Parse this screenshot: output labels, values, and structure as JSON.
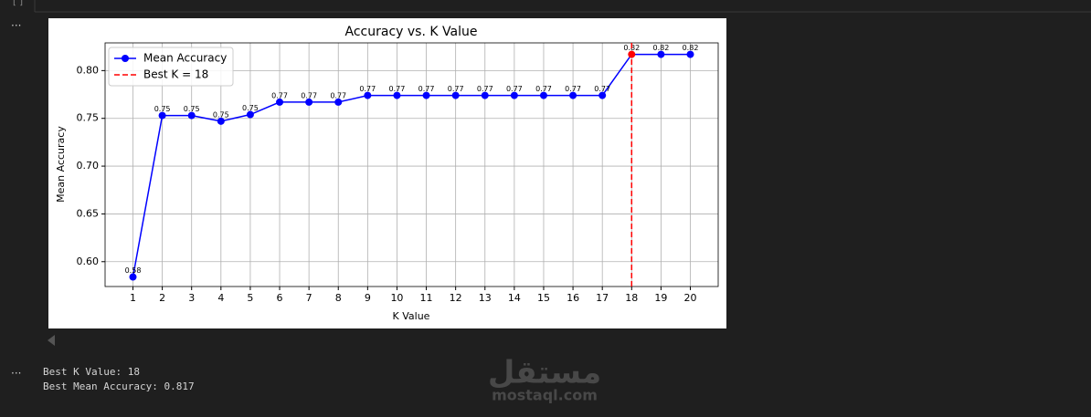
{
  "cell_prompt": "[ ]",
  "output_marker": "...",
  "chart_data": {
    "type": "line",
    "title": "Accuracy vs. K Value",
    "x_label": "K Value",
    "y_label": "Mean Accuracy",
    "x": [
      1,
      2,
      3,
      4,
      5,
      6,
      7,
      8,
      9,
      10,
      11,
      12,
      13,
      14,
      15,
      16,
      17,
      18,
      19,
      20
    ],
    "series": [
      {
        "name": "Mean Accuracy",
        "color": "#0000ff",
        "values": [
          0.584,
          0.753,
          0.753,
          0.747,
          0.754,
          0.767,
          0.767,
          0.767,
          0.774,
          0.774,
          0.774,
          0.774,
          0.774,
          0.774,
          0.774,
          0.774,
          0.774,
          0.817,
          0.817,
          0.817
        ],
        "value_labels": [
          "0.58",
          "0.75",
          "0.75",
          "0.75",
          "0.75",
          "0.77",
          "0.77",
          "0.77",
          "0.77",
          "0.77",
          "0.77",
          "0.77",
          "0.77",
          "0.77",
          "0.77",
          "0.77",
          "0.77",
          "0.82",
          "0.82",
          "0.82"
        ]
      }
    ],
    "vline": {
      "x": 18,
      "label": "Best K = 18",
      "color": "#ff0000"
    },
    "xlim": [
      0.05,
      20.95
    ],
    "xticks": [
      1,
      2,
      3,
      4,
      5,
      6,
      7,
      8,
      9,
      10,
      11,
      12,
      13,
      14,
      15,
      16,
      17,
      18,
      19,
      20
    ],
    "ylim": [
      0.574,
      0.829
    ],
    "yticks": [
      {
        "value": 0.6,
        "label": "0.60"
      },
      0.65,
      {
        "value": 0.7,
        "label": "0.70"
      },
      0.75,
      {
        "value": 0.8,
        "label": "0.80"
      }
    ],
    "grid": true,
    "legend": "upper left"
  },
  "output_lines": [
    "Best K Value: 18",
    "Best Mean Accuracy: 0.817"
  ],
  "watermark": {
    "arabic": "مستقل",
    "site": "mostaql.com"
  }
}
